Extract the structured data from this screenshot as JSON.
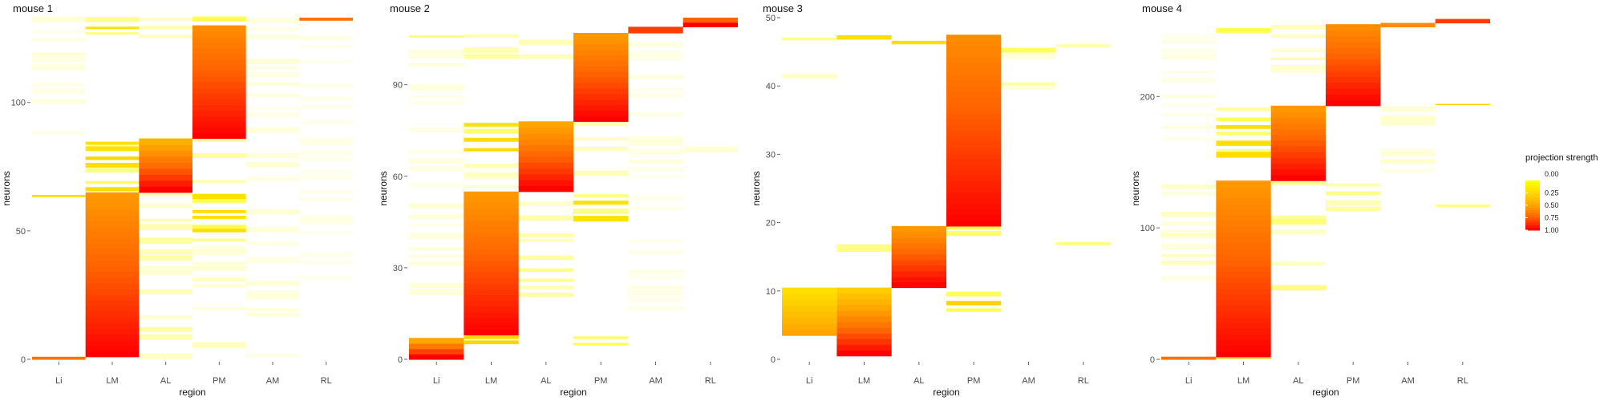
{
  "legend": {
    "title": "projection strength",
    "breaks": [
      "0.00",
      "0.25",
      "0.50",
      "0.75",
      "1.00"
    ],
    "colors": [
      "#FFFF00",
      "#FFD700",
      "#FFA500",
      "#FF6400",
      "#FF0000"
    ]
  },
  "chart_data": [
    {
      "type": "heatmap",
      "title": "mouse 1",
      "xlabel": "region",
      "ylabel": "neurons",
      "regions": [
        "Li",
        "LM",
        "AL",
        "PM",
        "AM",
        "RL"
      ],
      "ylim": [
        0,
        133
      ],
      "yticks": [
        0,
        50,
        100
      ],
      "blocks": [
        {
          "region": "LM",
          "y0": 1,
          "y1": 65,
          "low": 0.55,
          "high": 1.0
        },
        {
          "region": "AL",
          "y0": 65,
          "y1": 86,
          "low": 0.45,
          "high": 1.0
        },
        {
          "region": "PM",
          "y0": 86,
          "y1": 130,
          "low": 0.6,
          "high": 1.0
        },
        {
          "region": "Li",
          "y0": 0,
          "y1": 1,
          "low": 0.7,
          "high": 0.7
        },
        {
          "region": "RL",
          "y0": 132,
          "y1": 133,
          "low": 0.7,
          "high": 0.7
        }
      ],
      "bands": [
        {
          "region": "LM",
          "y0": 65,
          "y1": 86,
          "level": 0.3
        },
        {
          "region": "LM",
          "y0": 125,
          "y1": 133,
          "level": 0.25
        },
        {
          "region": "AL",
          "y0": 0,
          "y1": 65,
          "level": 0.12
        },
        {
          "region": "AL",
          "y0": 125,
          "y1": 133,
          "level": 0.15
        },
        {
          "region": "PM",
          "y0": 45,
          "y1": 65,
          "level": 0.25
        },
        {
          "region": "PM",
          "y0": 65,
          "y1": 86,
          "level": 0.15
        },
        {
          "region": "PM",
          "y0": 0,
          "y1": 45,
          "level": 0.08
        },
        {
          "region": "PM",
          "y0": 130,
          "y1": 133,
          "level": 0.35
        },
        {
          "region": "Li",
          "y0": 62,
          "y1": 64,
          "level": 0.3
        },
        {
          "region": "Li",
          "y0": 86,
          "y1": 133,
          "level": 0.05
        },
        {
          "region": "AM",
          "y0": 0,
          "y1": 133,
          "level": 0.05
        },
        {
          "region": "RL",
          "y0": 30,
          "y1": 130,
          "level": 0.03
        }
      ]
    },
    {
      "type": "heatmap",
      "title": "mouse 2",
      "xlabel": "region",
      "ylabel": "neurons",
      "regions": [
        "Li",
        "LM",
        "AL",
        "PM",
        "AM",
        "RL"
      ],
      "ylim": [
        0,
        112
      ],
      "yticks": [
        0,
        30,
        60,
        90
      ],
      "blocks": [
        {
          "region": "Li",
          "y0": 0,
          "y1": 7,
          "low": 0.5,
          "high": 1.0
        },
        {
          "region": "LM",
          "y0": 8,
          "y1": 55,
          "low": 0.55,
          "high": 1.0
        },
        {
          "region": "AL",
          "y0": 55,
          "y1": 78,
          "low": 0.5,
          "high": 1.0
        },
        {
          "region": "PM",
          "y0": 78,
          "y1": 107,
          "low": 0.55,
          "high": 1.0
        },
        {
          "region": "AM",
          "y0": 107,
          "y1": 109,
          "low": 0.85,
          "high": 0.85
        },
        {
          "region": "RL",
          "y0": 109,
          "y1": 112,
          "low": 0.75,
          "high": 1.0
        }
      ],
      "bands": [
        {
          "region": "Li",
          "y0": 105,
          "y1": 107,
          "level": 0.3
        },
        {
          "region": "Li",
          "y0": 20,
          "y1": 105,
          "level": 0.05
        },
        {
          "region": "LM",
          "y0": 4,
          "y1": 8,
          "level": 0.35
        },
        {
          "region": "LM",
          "y0": 55,
          "y1": 65,
          "level": 0.1
        },
        {
          "region": "LM",
          "y0": 68,
          "y1": 78,
          "level": 0.3
        },
        {
          "region": "LM",
          "y0": 95,
          "y1": 107,
          "level": 0.15
        },
        {
          "region": "AL",
          "y0": 20,
          "y1": 55,
          "level": 0.15
        },
        {
          "region": "AL",
          "y0": 95,
          "y1": 105,
          "level": 0.1
        },
        {
          "region": "PM",
          "y0": 45,
          "y1": 55,
          "level": 0.3
        },
        {
          "region": "PM",
          "y0": 4,
          "y1": 8,
          "level": 0.25
        },
        {
          "region": "PM",
          "y0": 60,
          "y1": 78,
          "level": 0.1
        },
        {
          "region": "AM",
          "y0": 15,
          "y1": 107,
          "level": 0.04
        },
        {
          "region": "RL",
          "y0": 62,
          "y1": 70,
          "level": 0.1
        }
      ]
    },
    {
      "type": "heatmap",
      "title": "mouse 3",
      "xlabel": "region",
      "ylabel": "neurons",
      "regions": [
        "Li",
        "LM",
        "AL",
        "PM",
        "AM",
        "RL"
      ],
      "ylim": [
        0,
        50
      ],
      "yticks": [
        0,
        10,
        20,
        30,
        40,
        50
      ],
      "blocks": [
        {
          "region": "LM",
          "y0": 0.5,
          "y1": 10.5,
          "low": 0.3,
          "high": 1.0
        },
        {
          "region": "AL",
          "y0": 10.5,
          "y1": 19.5,
          "low": 0.55,
          "high": 1.0
        },
        {
          "region": "PM",
          "y0": 19.5,
          "y1": 47.5,
          "low": 0.6,
          "high": 1.0
        },
        {
          "region": "Li",
          "y0": 3.5,
          "y1": 10.5,
          "low": 0.2,
          "high": 0.5
        }
      ],
      "bands": [
        {
          "region": "Li",
          "y0": 46.5,
          "y1": 47.5,
          "level": 0.2
        },
        {
          "region": "Li",
          "y0": 38,
          "y1": 42,
          "level": 0.08
        },
        {
          "region": "LM",
          "y0": 46.5,
          "y1": 47.5,
          "level": 0.35
        },
        {
          "region": "LM",
          "y0": 15,
          "y1": 16.5,
          "level": 0.25
        },
        {
          "region": "AL",
          "y0": 45.5,
          "y1": 46.5,
          "level": 0.35
        },
        {
          "region": "AL",
          "y0": 43,
          "y1": 45.5,
          "level": 0.1
        },
        {
          "region": "PM",
          "y0": 6.5,
          "y1": 10.5,
          "level": 0.4
        },
        {
          "region": "PM",
          "y0": 17.5,
          "y1": 19.5,
          "level": 0.35
        },
        {
          "region": "AM",
          "y0": 44.5,
          "y1": 45.5,
          "level": 0.3
        },
        {
          "region": "AM",
          "y0": 39,
          "y1": 44.5,
          "level": 0.08
        },
        {
          "region": "RL",
          "y0": 16.5,
          "y1": 17.5,
          "level": 0.3
        },
        {
          "region": "RL",
          "y0": 45.5,
          "y1": 46.5,
          "level": 0.15
        },
        {
          "region": "RL",
          "y0": 1.5,
          "y1": 3.5,
          "level": 0.12
        }
      ]
    },
    {
      "type": "heatmap",
      "title": "mouse 4",
      "xlabel": "region",
      "ylabel": "neurons",
      "regions": [
        "Li",
        "LM",
        "AL",
        "PM",
        "AM",
        "RL"
      ],
      "ylim": [
        0,
        260
      ],
      "yticks": [
        0,
        100,
        200
      ],
      "blocks": [
        {
          "region": "LM",
          "y0": 2,
          "y1": 136,
          "low": 0.55,
          "high": 1.0
        },
        {
          "region": "AL",
          "y0": 136,
          "y1": 193,
          "low": 0.55,
          "high": 1.0
        },
        {
          "region": "PM",
          "y0": 193,
          "y1": 255,
          "low": 0.6,
          "high": 1.0
        },
        {
          "region": "Li",
          "y0": 0,
          "y1": 2,
          "low": 0.7,
          "high": 0.7
        },
        {
          "region": "AM",
          "y0": 253,
          "y1": 256,
          "low": 0.6,
          "high": 0.6
        },
        {
          "region": "RL",
          "y0": 256,
          "y1": 259,
          "low": 0.85,
          "high": 0.85
        }
      ],
      "bands": [
        {
          "region": "LM",
          "y0": 0,
          "y1": 2,
          "level": 0.35
        },
        {
          "region": "LM",
          "y0": 150,
          "y1": 193,
          "level": 0.25
        },
        {
          "region": "LM",
          "y0": 246,
          "y1": 252,
          "level": 0.4
        },
        {
          "region": "AL",
          "y0": 50,
          "y1": 136,
          "level": 0.15
        },
        {
          "region": "AL",
          "y0": 215,
          "y1": 255,
          "level": 0.1
        },
        {
          "region": "PM",
          "y0": 110,
          "y1": 136,
          "level": 0.15
        },
        {
          "region": "Li",
          "y0": 60,
          "y1": 135,
          "level": 0.08
        },
        {
          "region": "Li",
          "y0": 160,
          "y1": 250,
          "level": 0.04
        },
        {
          "region": "AM",
          "y0": 110,
          "y1": 193,
          "level": 0.06
        },
        {
          "region": "RL",
          "y0": 193,
          "y1": 194,
          "level": 0.35
        },
        {
          "region": "RL",
          "y0": 115,
          "y1": 118,
          "level": 0.25
        }
      ]
    }
  ]
}
